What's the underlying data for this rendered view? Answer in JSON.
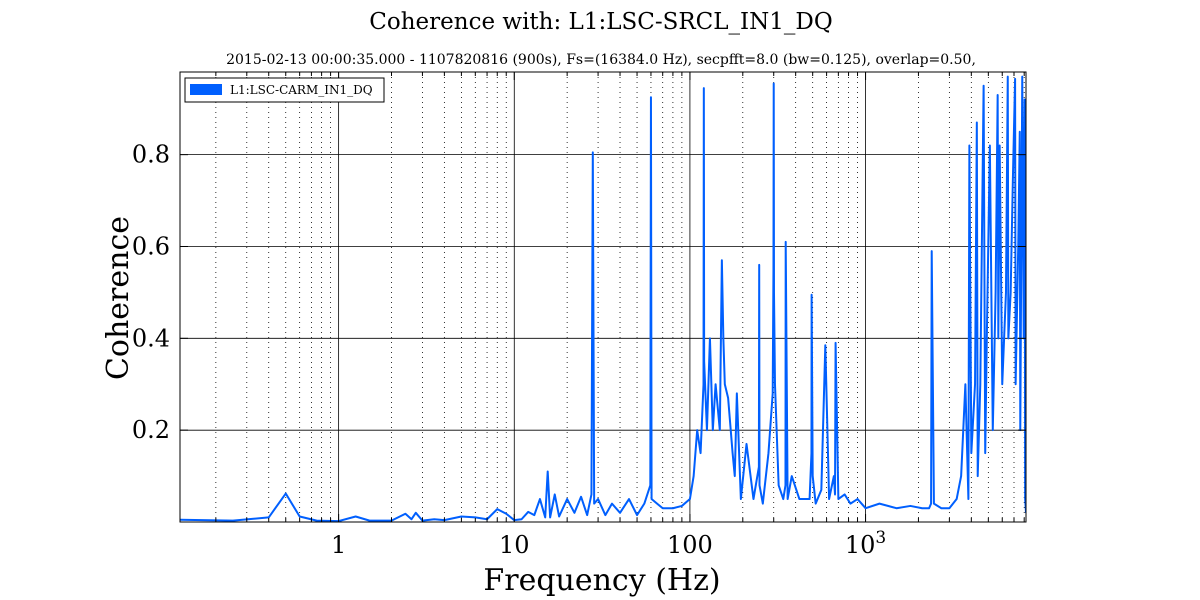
{
  "chart_data": {
    "type": "line",
    "title": "Coherence with: L1:LSC-SRCL_IN1_DQ",
    "subtitle": "2015-02-13 00:00:35.000 - 1107820816 (900s), Fs=(16384.0 Hz), secpfft=8.0 (bw=0.125), overlap=0.50,",
    "xlabel": "Frequency (Hz)",
    "ylabel": "Coherence",
    "xscale": "log",
    "xlim": [
      0.125,
      8192
    ],
    "ylim": [
      0,
      0.98
    ],
    "xticks": [
      {
        "value": 1,
        "label": "1"
      },
      {
        "value": 10,
        "label": "10"
      },
      {
        "value": 100,
        "label": "100"
      },
      {
        "value": 1000,
        "label": "10",
        "exponent": "3"
      }
    ],
    "yticks": [
      {
        "value": 0.2,
        "label": "0.2"
      },
      {
        "value": 0.4,
        "label": "0.4"
      },
      {
        "value": 0.6,
        "label": "0.6"
      },
      {
        "value": 0.8,
        "label": "0.8"
      }
    ],
    "grid": true,
    "legend_position": "top-left",
    "line_color": "#005ffe",
    "series": [
      {
        "name": "L1:LSC-CARM_IN1_DQ",
        "x": [
          0.125,
          0.25,
          0.4,
          0.5,
          0.6,
          0.75,
          1.0,
          1.25,
          1.5,
          2.0,
          2.4,
          2.6,
          2.75,
          3.0,
          3.5,
          4.0,
          5.0,
          6.0,
          7.0,
          8.0,
          9.0,
          10.0,
          11.0,
          12.0,
          13.0,
          14.0,
          15.0,
          15.5,
          16.0,
          17.0,
          18.0,
          20.0,
          22.0,
          24.0,
          26.0,
          27.5,
          28.0,
          28.5,
          30.0,
          33.0,
          36.0,
          40.0,
          45.0,
          50.0,
          55.0,
          59.5,
          60.0,
          60.5,
          65.0,
          70.0,
          80.0,
          90.0,
          100.0,
          105.0,
          110.0,
          115.0,
          119.5,
          120.0,
          120.5,
          125.0,
          130.0,
          135.0,
          140.0,
          148.0,
          152.0,
          155.0,
          158.0,
          165.0,
          175.0,
          180.0,
          185.0,
          195.0,
          210.0,
          230.0,
          247.0,
          248.0,
          249.0,
          260.0,
          280.0,
          296.0,
          299.0,
          300.0,
          301.0,
          305.0,
          320.0,
          340.0,
          350.0,
          351.0,
          360.0,
          380.0,
          420.0,
          450.0,
          480.0,
          492.0,
          493.0,
          500.0,
          520.0,
          560.0,
          590.0,
          620.0,
          660.0,
          670.0,
          675.0,
          700.0,
          760.0,
          820.0,
          900.0,
          1000.0,
          1200.0,
          1500.0,
          1800.0,
          2100.0,
          2300.0,
          2360.0,
          2380.0,
          2450.0,
          2700.0,
          3000.0,
          3300.0,
          3500.0,
          3700.0,
          3850.0,
          3900.0,
          4000.0,
          4200.0,
          4300.0,
          4350.0,
          4500.0,
          4700.0,
          4800.0,
          4900.0,
          5100.0,
          5300.0,
          5500.0,
          5650.0,
          5700.0,
          5800.0,
          6000.0,
          6300.0,
          6450.0,
          6500.0,
          6700.0,
          6900.0,
          7100.0,
          7150.0,
          7400.0,
          7550.0,
          7600.0,
          7800.0,
          7950.0,
          8050.0,
          8100.0,
          8192.0
        ],
        "y": [
          0.005,
          0.003,
          0.01,
          0.062,
          0.012,
          0.003,
          0.002,
          0.012,
          0.003,
          0.003,
          0.018,
          0.006,
          0.02,
          0.003,
          0.006,
          0.004,
          0.012,
          0.01,
          0.006,
          0.028,
          0.018,
          0.004,
          0.006,
          0.022,
          0.015,
          0.05,
          0.01,
          0.11,
          0.01,
          0.06,
          0.012,
          0.05,
          0.02,
          0.055,
          0.015,
          0.06,
          0.805,
          0.04,
          0.05,
          0.015,
          0.04,
          0.02,
          0.05,
          0.015,
          0.04,
          0.08,
          0.925,
          0.05,
          0.04,
          0.03,
          0.03,
          0.035,
          0.05,
          0.1,
          0.2,
          0.15,
          0.3,
          0.945,
          0.35,
          0.2,
          0.4,
          0.2,
          0.3,
          0.2,
          0.57,
          0.4,
          0.3,
          0.27,
          0.15,
          0.1,
          0.28,
          0.05,
          0.17,
          0.05,
          0.12,
          0.56,
          0.08,
          0.04,
          0.15,
          0.28,
          0.55,
          0.955,
          0.5,
          0.3,
          0.08,
          0.05,
          0.08,
          0.61,
          0.05,
          0.1,
          0.05,
          0.05,
          0.05,
          0.15,
          0.495,
          0.1,
          0.04,
          0.07,
          0.385,
          0.05,
          0.1,
          0.06,
          0.39,
          0.05,
          0.06,
          0.04,
          0.05,
          0.03,
          0.04,
          0.03,
          0.035,
          0.03,
          0.03,
          0.04,
          0.59,
          0.04,
          0.03,
          0.03,
          0.05,
          0.1,
          0.3,
          0.05,
          0.82,
          0.15,
          0.3,
          0.87,
          0.1,
          0.3,
          0.95,
          0.15,
          0.4,
          0.82,
          0.2,
          0.5,
          0.93,
          0.4,
          0.82,
          0.3,
          0.5,
          0.97,
          0.4,
          0.5,
          0.75,
          0.965,
          0.3,
          0.6,
          0.85,
          0.2,
          0.97,
          0.4,
          0.92,
          0.05,
          0.02
        ]
      }
    ]
  }
}
